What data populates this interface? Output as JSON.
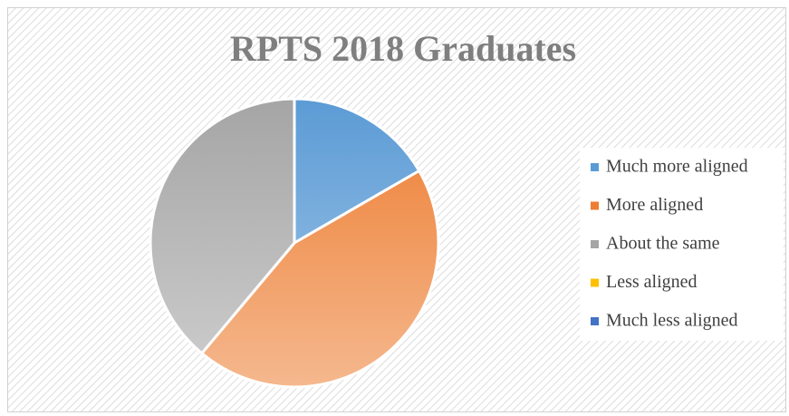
{
  "chart_data": {
    "type": "pie",
    "title": "RPTS 2018 Graduates",
    "categories": [
      "Much more aligned",
      "More aligned",
      "About the same",
      "Less aligned",
      "Much less aligned"
    ],
    "values": [
      3,
      8,
      7,
      0,
      0
    ],
    "colors": [
      "#5b9bd5",
      "#ed7d31",
      "#a5a5a5",
      "#ffc000",
      "#4472c4"
    ],
    "legend": "right"
  }
}
